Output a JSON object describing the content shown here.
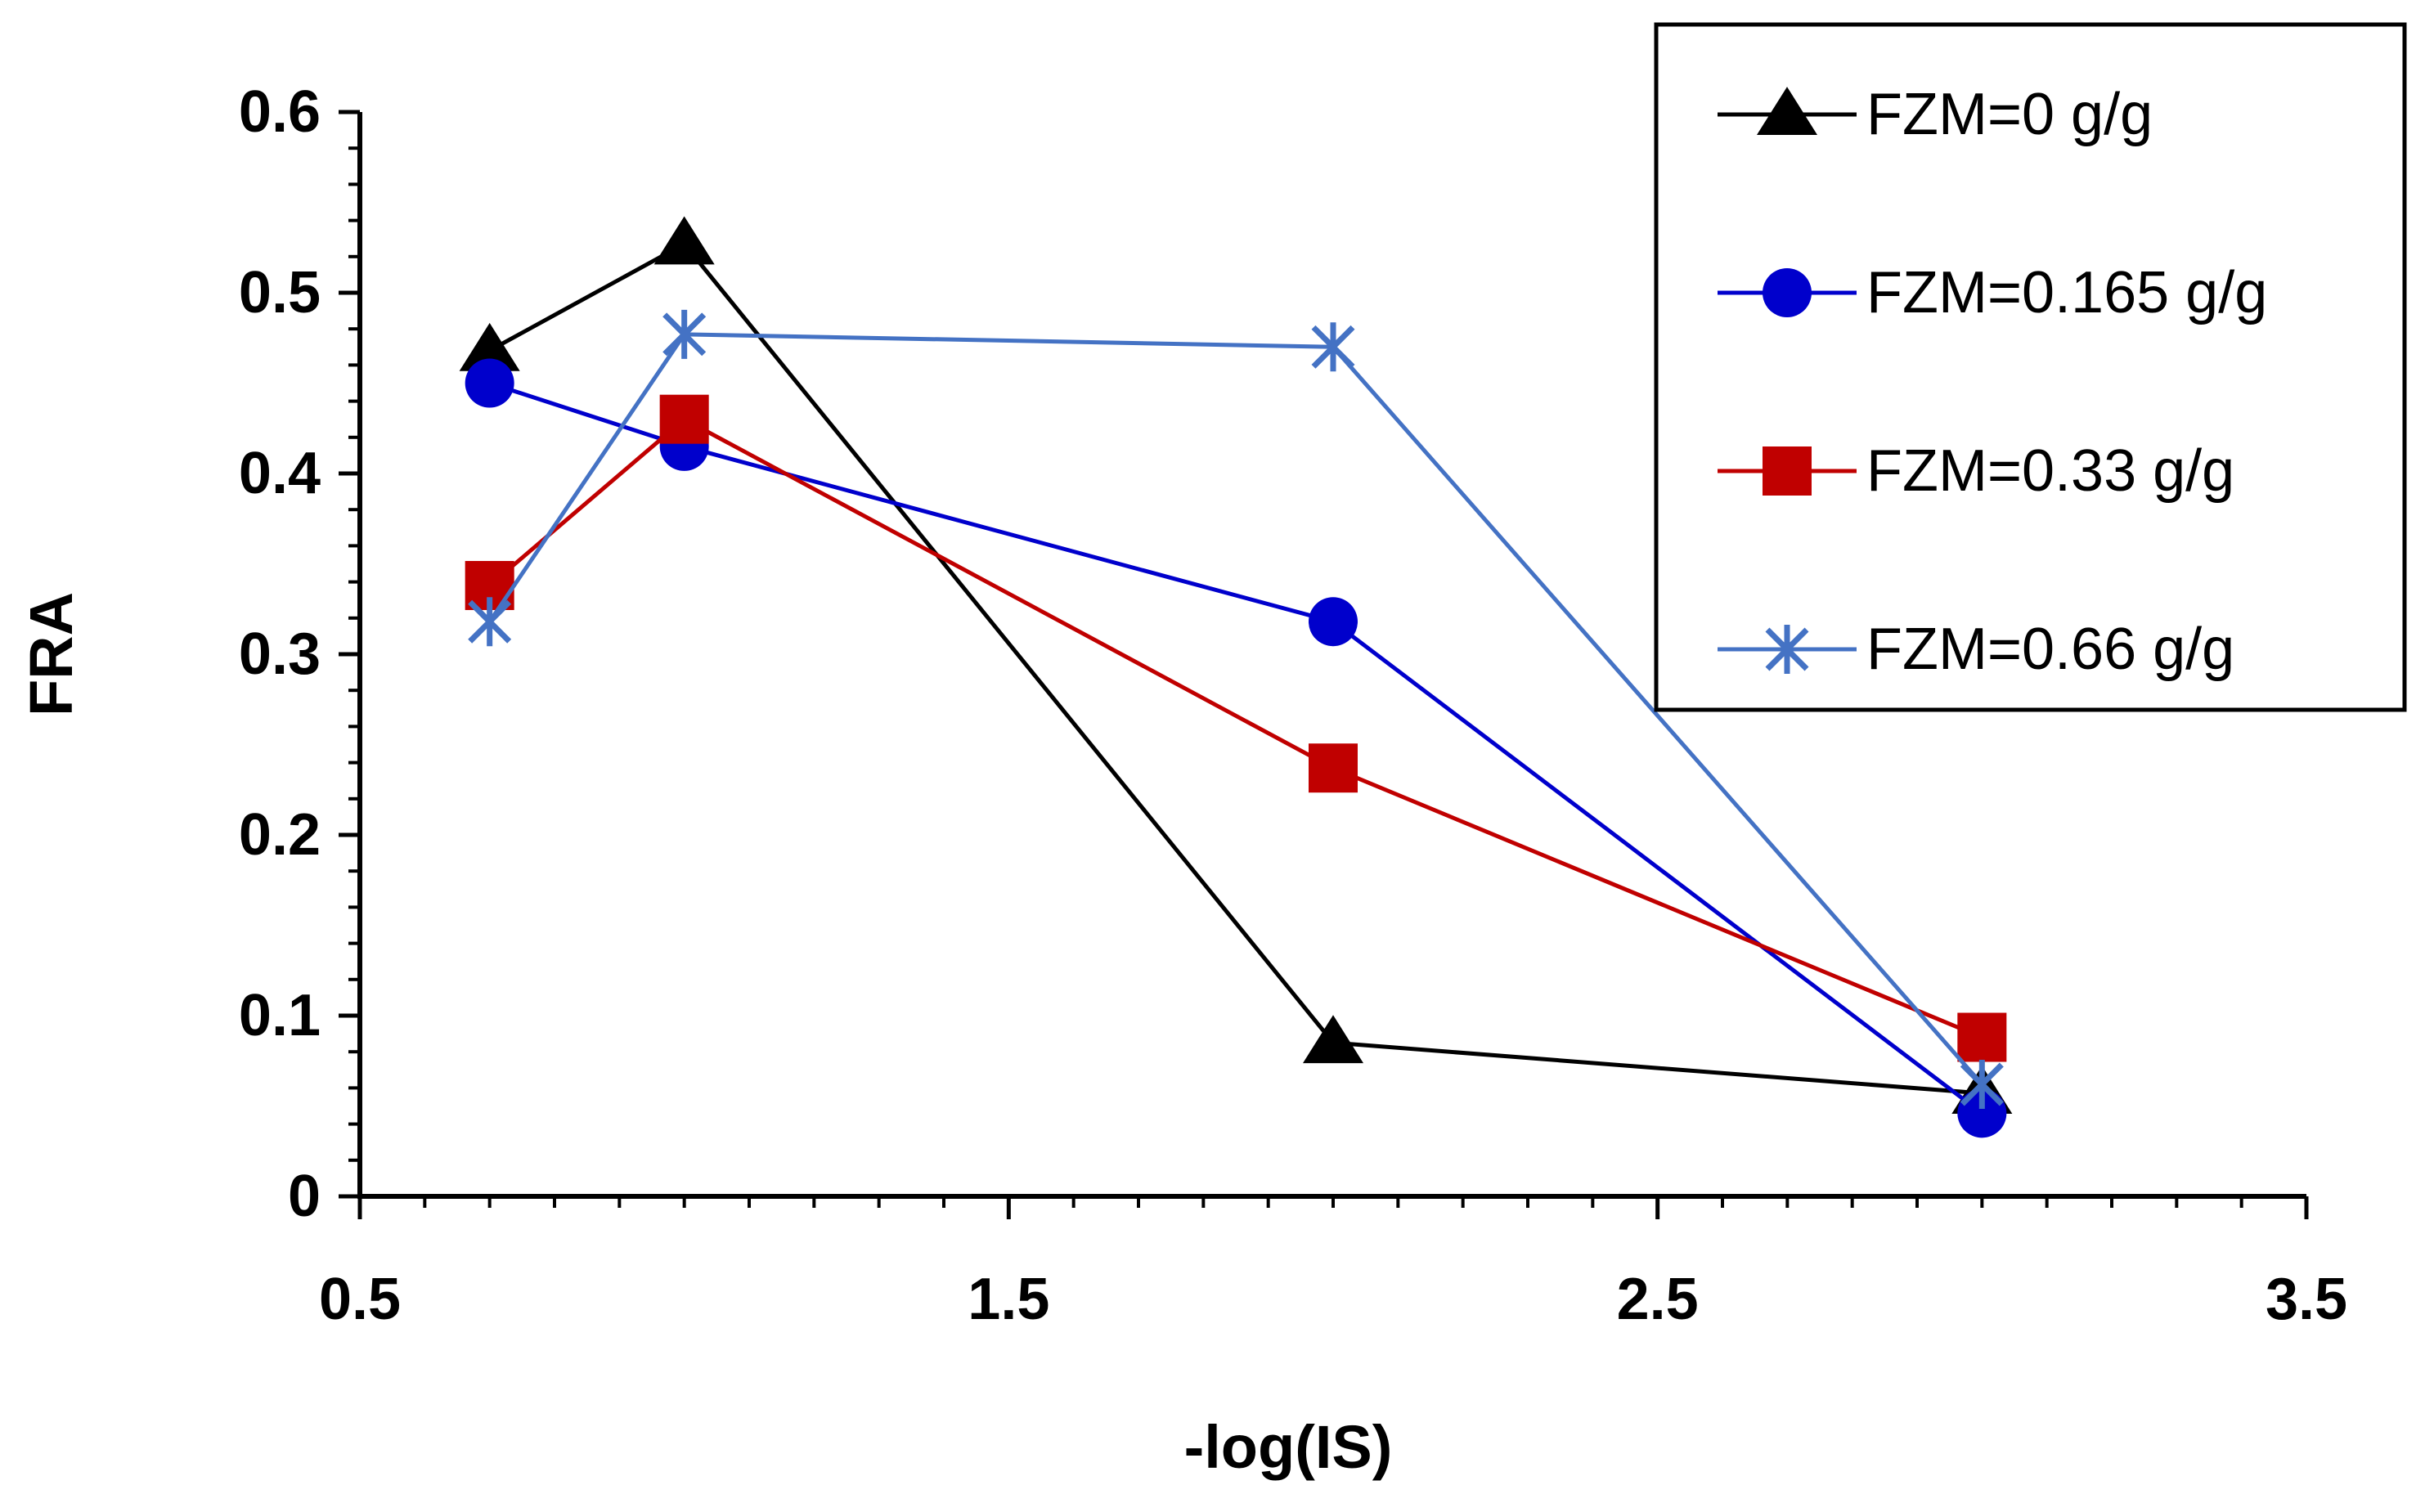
{
  "chart_data": {
    "type": "line",
    "title": "",
    "xlabel": "-log(IS)",
    "ylabel": "FRA",
    "xlim": [
      0.5,
      3.5
    ],
    "ylim": [
      0,
      0.6
    ],
    "x_major_ticks": [
      0.5,
      1.5,
      2.5,
      3.5
    ],
    "x_tick_labels": [
      "0.5",
      "1.5",
      "2.5",
      "3.5"
    ],
    "x_minor_step": 0.1,
    "y_major_ticks": [
      0,
      0.1,
      0.2,
      0.3,
      0.4,
      0.5,
      0.6
    ],
    "y_tick_labels": [
      "0",
      "0.1",
      "0.2",
      "0.3",
      "0.4",
      "0.5",
      "0.6"
    ],
    "y_minor_step": 0.02,
    "grid": false,
    "legend_position": "top-right",
    "series": [
      {
        "name": "FZM=0 g/g",
        "color": "#000000",
        "marker": "triangle",
        "x": [
          0.7,
          1.0,
          2.0,
          3.0
        ],
        "y": [
          0.468,
          0.527,
          0.085,
          0.057
        ]
      },
      {
        "name": "FZM=0.165 g/g",
        "color": "#0000CC",
        "marker": "circle",
        "x": [
          0.7,
          1.0,
          2.0,
          3.0
        ],
        "y": [
          0.45,
          0.415,
          0.318,
          0.046
        ]
      },
      {
        "name": "FZM=0.33 g/g",
        "color": "#C00000",
        "marker": "square",
        "x": [
          0.7,
          1.0,
          2.0,
          3.0
        ],
        "y": [
          0.338,
          0.43,
          0.237,
          0.088
        ]
      },
      {
        "name": "FZM=0.66 g/g",
        "color": "#4472C4",
        "marker": "asterisk",
        "x": [
          0.7,
          1.0,
          2.0,
          3.0
        ],
        "y": [
          0.318,
          0.477,
          0.47,
          0.062
        ]
      }
    ]
  }
}
